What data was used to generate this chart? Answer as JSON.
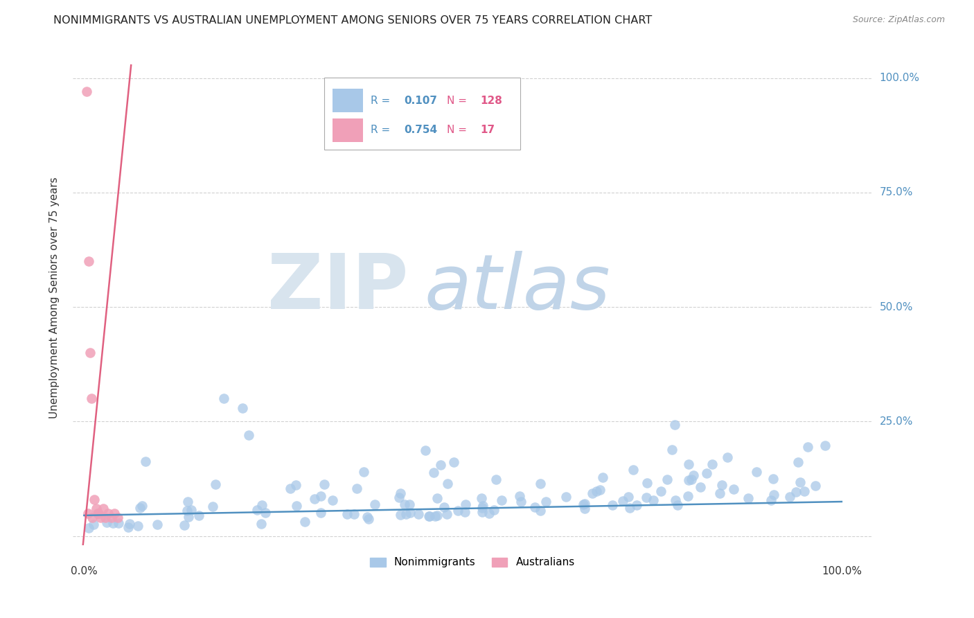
{
  "title": "NONIMMIGRANTS VS AUSTRALIAN UNEMPLOYMENT AMONG SENIORS OVER 75 YEARS CORRELATION CHART",
  "source_text": "Source: ZipAtlas.com",
  "ylabel": "Unemployment Among Seniors over 75 years",
  "legend_blue_R": "0.107",
  "legend_blue_N": "128",
  "legend_pink_R": "0.754",
  "legend_pink_N": "17",
  "legend_label_blue": "Nonimmigrants",
  "legend_label_pink": "Australians",
  "blue_color": "#A8C8E8",
  "pink_color": "#F0A0B8",
  "blue_line_color": "#5090C0",
  "pink_line_color": "#E06080",
  "title_color": "#222222",
  "source_color": "#888888",
  "axis_label_color": "#5090C0",
  "ylabel_color": "#333333",
  "xlabel_color": "#333333",
  "grid_color": "#CCCCCC",
  "watermark_ZIP_color": "#D8E4EE",
  "watermark_atlas_color": "#C0D4E8"
}
